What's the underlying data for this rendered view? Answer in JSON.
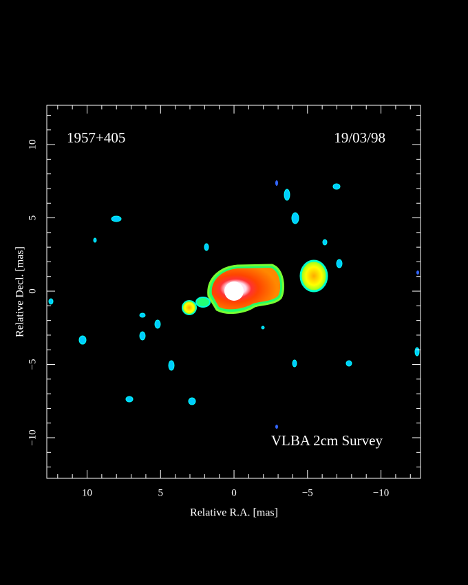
{
  "chart_data": {
    "type": "image",
    "source_label": "1957+405",
    "date_label": "19/03/98",
    "survey_label": "VLBA 2cm Survey",
    "x_label": "Relative R.A. [mas]",
    "y_label": "Relative Decl. [mas]",
    "xlim": [
      12.74,
      -12.69
    ],
    "ylim": [
      -12.77,
      12.68
    ],
    "xticks": [
      10,
      5,
      0,
      {
        "value": -5,
        "label": "−5"
      },
      {
        "value": -10,
        "label": "−10"
      }
    ],
    "yticks": [
      {
        "value": -10,
        "label": "−10"
      },
      {
        "value": -5,
        "label": "−5"
      },
      0,
      5,
      10
    ],
    "xminorticks": [
      12,
      11,
      9,
      8,
      7,
      6,
      4,
      3,
      2,
      1,
      -1,
      -2,
      -3,
      -4,
      -6,
      -7,
      -8,
      -9,
      -11,
      -12
    ],
    "yminorticks": [
      -12,
      -11,
      -9,
      -8,
      -7,
      -6,
      -4,
      -3,
      -2,
      -1,
      1,
      2,
      3,
      4,
      6,
      7,
      8,
      9,
      11,
      12
    ]
  }
}
